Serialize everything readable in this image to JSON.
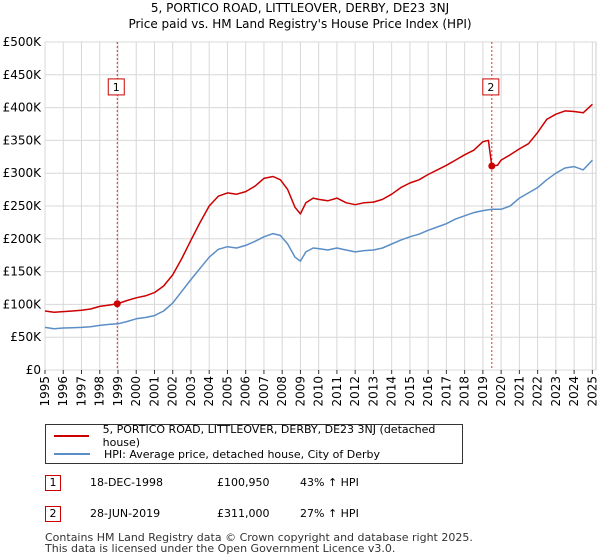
{
  "header": {
    "title_line1": "5, PORTICO ROAD, LITTLEOVER, DERBY, DE23 3NJ",
    "title_line2": "Price paid vs. HM Land Registry's House Price Index (HPI)"
  },
  "colors": {
    "property": "#cc0000",
    "hpi": "#5b8ec6",
    "grid": "#d8d8d8",
    "plot_bg": "#ffffff",
    "marker_line": "#cc0000"
  },
  "chart_data": {
    "type": "line",
    "title": "Price paid vs. HM Land Registry's House Price Index (HPI)",
    "xlabel": "",
    "ylabel": "",
    "xlim": [
      1995.0,
      2025.2
    ],
    "ylim": [
      0,
      500000
    ],
    "yticks": [
      0,
      50000,
      100000,
      150000,
      200000,
      250000,
      300000,
      350000,
      400000,
      450000,
      500000
    ],
    "ytick_labels": [
      "£0",
      "£50K",
      "£100K",
      "£150K",
      "£200K",
      "£250K",
      "£300K",
      "£350K",
      "£400K",
      "£450K",
      "£500K"
    ],
    "xticks": [
      1995,
      1996,
      1997,
      1998,
      1999,
      2000,
      2001,
      2002,
      2003,
      2004,
      2005,
      2006,
      2007,
      2008,
      2009,
      2010,
      2011,
      2012,
      2013,
      2014,
      2015,
      2016,
      2017,
      2018,
      2019,
      2020,
      2021,
      2022,
      2023,
      2024,
      2025
    ],
    "xtick_labels": [
      "1995",
      "1996",
      "1997",
      "1998",
      "1999",
      "2000",
      "2001",
      "2002",
      "2003",
      "2004",
      "2005",
      "2006",
      "2007",
      "2008",
      "2009",
      "2010",
      "2011",
      "2012",
      "2013",
      "2014",
      "2015",
      "2016",
      "2017",
      "2018",
      "2019",
      "2020",
      "2021",
      "2022",
      "2023",
      "2024",
      "2025"
    ],
    "series": [
      {
        "name": "5, PORTICO ROAD, LITTLEOVER, DERBY, DE23 3NJ (detached house)",
        "color": "#cc0000",
        "x": [
          1995.0,
          1995.5,
          1996.0,
          1996.5,
          1997.0,
          1997.5,
          1998.0,
          1998.5,
          1998.96,
          1999.5,
          2000.0,
          2000.5,
          2001.0,
          2001.5,
          2002.0,
          2002.5,
          2003.0,
          2003.5,
          2004.0,
          2004.5,
          2005.0,
          2005.5,
          2006.0,
          2006.5,
          2007.0,
          2007.5,
          2007.9,
          2008.3,
          2008.7,
          2009.0,
          2009.3,
          2009.7,
          2010.0,
          2010.5,
          2011.0,
          2011.5,
          2012.0,
          2012.5,
          2013.0,
          2013.5,
          2014.0,
          2014.5,
          2015.0,
          2015.5,
          2016.0,
          2016.5,
          2017.0,
          2017.5,
          2018.0,
          2018.5,
          2019.0,
          2019.3,
          2019.49,
          2019.8,
          2020.0,
          2020.5,
          2021.0,
          2021.5,
          2022.0,
          2022.5,
          2023.0,
          2023.5,
          2024.0,
          2024.5,
          2025.0
        ],
        "values": [
          90000,
          88000,
          89000,
          90000,
          91000,
          93000,
          97000,
          99000,
          100950,
          106000,
          110000,
          113000,
          118000,
          128000,
          145000,
          170000,
          198000,
          225000,
          250000,
          265000,
          270000,
          268000,
          272000,
          280000,
          292000,
          295000,
          290000,
          275000,
          248000,
          238000,
          255000,
          262000,
          260000,
          258000,
          262000,
          255000,
          252000,
          255000,
          256000,
          260000,
          268000,
          278000,
          285000,
          290000,
          298000,
          305000,
          312000,
          320000,
          328000,
          335000,
          348000,
          350000,
          311000,
          312000,
          320000,
          328000,
          337000,
          345000,
          362000,
          382000,
          390000,
          395000,
          394000,
          392000,
          405000
        ]
      },
      {
        "name": "HPI: Average price, detached house, City of Derby",
        "color": "#5b8ec6",
        "x": [
          1995.0,
          1995.5,
          1996.0,
          1996.5,
          1997.0,
          1997.5,
          1998.0,
          1998.5,
          1999.0,
          1999.5,
          2000.0,
          2000.5,
          2001.0,
          2001.5,
          2002.0,
          2002.5,
          2003.0,
          2003.5,
          2004.0,
          2004.5,
          2005.0,
          2005.5,
          2006.0,
          2006.5,
          2007.0,
          2007.5,
          2007.9,
          2008.3,
          2008.7,
          2009.0,
          2009.3,
          2009.7,
          2010.0,
          2010.5,
          2011.0,
          2011.5,
          2012.0,
          2012.5,
          2013.0,
          2013.5,
          2014.0,
          2014.5,
          2015.0,
          2015.5,
          2016.0,
          2016.5,
          2017.0,
          2017.5,
          2018.0,
          2018.5,
          2019.0,
          2019.5,
          2020.0,
          2020.5,
          2021.0,
          2021.5,
          2022.0,
          2022.5,
          2023.0,
          2023.5,
          2024.0,
          2024.5,
          2025.0
        ],
        "values": [
          65000,
          63000,
          64000,
          64500,
          65000,
          66000,
          68000,
          69500,
          70500,
          74000,
          78000,
          80000,
          83000,
          90000,
          102000,
          120000,
          138000,
          155000,
          172000,
          184000,
          188000,
          186000,
          190000,
          196000,
          203000,
          208000,
          205000,
          192000,
          172000,
          166000,
          180000,
          186000,
          185000,
          183000,
          186000,
          183000,
          180000,
          182000,
          183000,
          186000,
          192000,
          198000,
          203000,
          207000,
          213000,
          218000,
          223000,
          230000,
          235000,
          240000,
          243000,
          245000,
          245000,
          250000,
          262000,
          270000,
          278000,
          290000,
          300000,
          308000,
          310000,
          305000,
          320000
        ]
      }
    ],
    "sales": [
      {
        "id": "1",
        "date": "18-DEC-1998",
        "x": 1998.96,
        "price": 100950,
        "price_label": "£100,950",
        "hpi_change": "43% ↑ HPI"
      },
      {
        "id": "2",
        "date": "28-JUN-2019",
        "x": 2019.49,
        "price": 311000,
        "price_label": "£311,000",
        "hpi_change": "27% ↑ HPI"
      }
    ],
    "marker_label_y": 430000
  },
  "legend": {
    "property_label": "5, PORTICO ROAD, LITTLEOVER, DERBY, DE23 3NJ (detached house)",
    "hpi_label": "HPI: Average price, detached house, City of Derby"
  },
  "footer": {
    "line1": "Contains HM Land Registry data © Crown copyright and database right 2025.",
    "line2": "This data is licensed under the Open Government Licence v3.0."
  }
}
